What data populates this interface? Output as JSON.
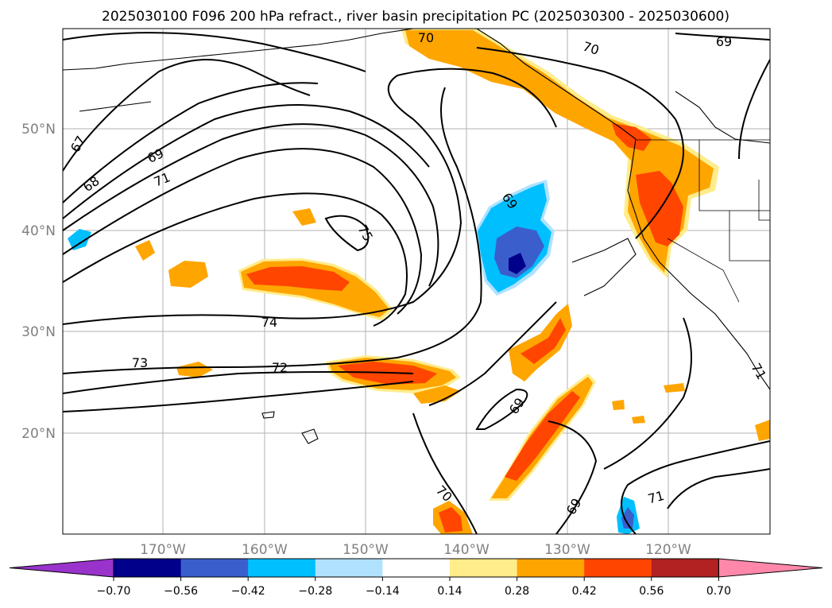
{
  "title": "2025030100 F096 200 hPa refract., river basin precipitation PC (2025030300 - 2025030600)",
  "axes": {
    "lat_labels": [
      "50°N",
      "40°N",
      "30°N",
      "20°N"
    ],
    "lon_labels": [
      "170°W",
      "160°W",
      "150°W",
      "140°W",
      "130°W",
      "120°W"
    ]
  },
  "contour_labels": [
    {
      "text": "70",
      "name": "contour-label-70-north"
    },
    {
      "text": "70",
      "name": "contour-label-70-northeast"
    },
    {
      "text": "69",
      "name": "contour-label-69-northeast"
    },
    {
      "text": "67",
      "name": "contour-label-67"
    },
    {
      "text": "68",
      "name": "contour-label-68"
    },
    {
      "text": "69",
      "name": "contour-label-69-west"
    },
    {
      "text": "71",
      "name": "contour-label-71-west"
    },
    {
      "text": "75",
      "name": "contour-label-75"
    },
    {
      "text": "69",
      "name": "contour-label-69-central"
    },
    {
      "text": "74",
      "name": "contour-label-74"
    },
    {
      "text": "73",
      "name": "contour-label-73"
    },
    {
      "text": "72",
      "name": "contour-label-72"
    },
    {
      "text": "69",
      "name": "contour-label-69-south"
    },
    {
      "text": "70",
      "name": "contour-label-70-south"
    },
    {
      "text": "69",
      "name": "contour-label-69-southeast"
    },
    {
      "text": "71",
      "name": "contour-label-71-southeast"
    },
    {
      "text": "71",
      "name": "contour-label-71-east"
    }
  ],
  "colorbar": {
    "ticks": [
      "−0.70",
      "−0.56",
      "−0.42",
      "−0.28",
      "−0.14",
      "0.14",
      "0.28",
      "0.42",
      "0.56",
      "0.70"
    ],
    "colors": [
      "#9933cc",
      "#00008b",
      "#3a5fcd",
      "#00bfff",
      "#b0e2ff",
      "#ffffff",
      "#ffec8b",
      "#ffa500",
      "#ff4500",
      "#b22222",
      "#ff88aa"
    ]
  },
  "precip_colors": {
    "light_blue": "#b0e2ff",
    "blue": "#00bfff",
    "mid_blue": "#3a5fcd",
    "navy": "#00008b",
    "yellow": "#ffec8b",
    "orange": "#ffa500",
    "red_orange": "#ff4500",
    "dark_red": "#b22222"
  }
}
